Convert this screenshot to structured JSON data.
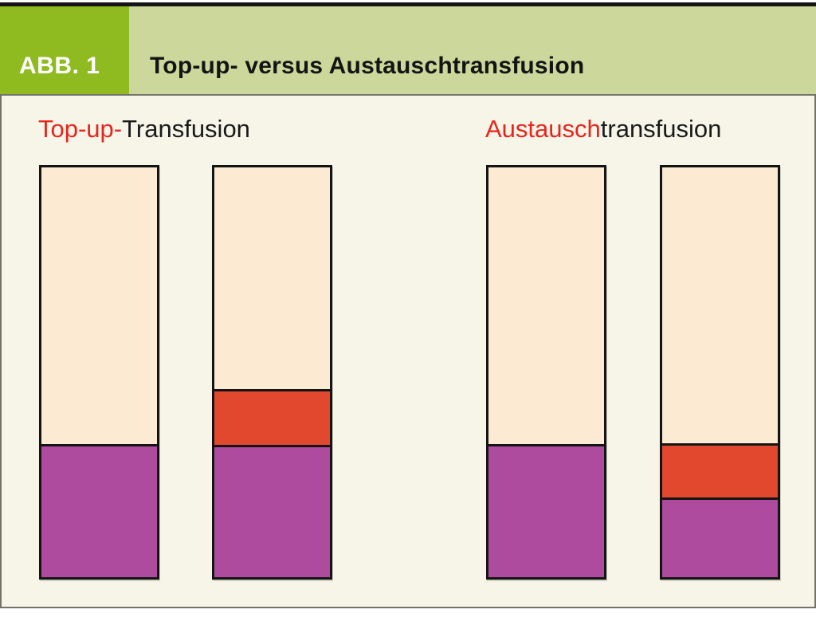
{
  "figure": {
    "tag": "ABB. 1",
    "title": "Top-up- versus Austauschtransfusion"
  },
  "labels": {
    "left": {
      "highlight": "Top-up-",
      "rest": "Transfusion"
    },
    "right": {
      "highlight": "Austausch",
      "rest": "transfusion"
    }
  },
  "colors": {
    "header_tag_bg": "#8fbb21",
    "header_bg": "#ccd89b",
    "panel_bg": "#f6f5e8",
    "panel_border": "#73736a",
    "bar_border": "#141414",
    "cream": "#fcead2",
    "red": "#e2482e",
    "magenta": "#ae4b9e",
    "label_highlight": "#e52620"
  },
  "chart_data": {
    "type": "bar",
    "title": "Top-up- versus Austauschtransfusion",
    "axes": "none",
    "legend": "none",
    "note": "Four schematic stacked bars; segment fractions estimated from pixel heights of a 520px-tall bar",
    "groups": [
      {
        "label": "Top-up-Transfusion",
        "bars": [
          {
            "id": "before-top-up",
            "segments": [
              {
                "color": "cream",
                "fraction": 0.679
              },
              {
                "color": "magenta",
                "fraction": 0.321
              }
            ]
          },
          {
            "id": "after-top-up",
            "segments": [
              {
                "color": "cream",
                "fraction": 0.548
              },
              {
                "color": "red",
                "fraction": 0.131
              },
              {
                "color": "magenta",
                "fraction": 0.321
              }
            ]
          }
        ]
      },
      {
        "label": "Austauschtransfusion",
        "bars": [
          {
            "id": "before-exchange",
            "segments": [
              {
                "color": "cream",
                "fraction": 0.679
              },
              {
                "color": "magenta",
                "fraction": 0.321
              }
            ]
          },
          {
            "id": "after-exchange",
            "segments": [
              {
                "color": "cream",
                "fraction": 0.681
              },
              {
                "color": "red",
                "fraction": 0.129
              },
              {
                "color": "magenta",
                "fraction": 0.19
              }
            ]
          }
        ]
      }
    ]
  }
}
